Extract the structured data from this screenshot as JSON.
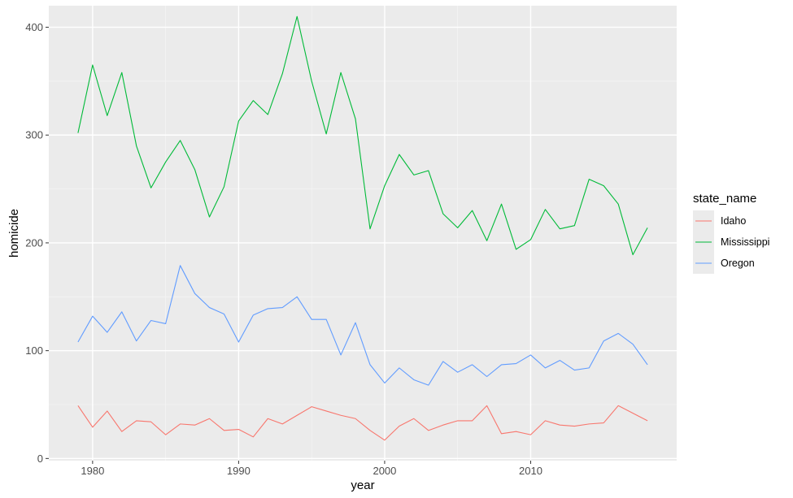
{
  "chart_data": {
    "type": "line",
    "xlabel": "year",
    "ylabel": "homicide",
    "xlim": [
      1977,
      2020
    ],
    "ylim": [
      -2,
      420
    ],
    "x_ticks": [
      1980,
      1990,
      2000,
      2010
    ],
    "x_tick_labels": [
      "1980",
      "1990",
      "2000",
      "2010"
    ],
    "y_ticks": [
      0,
      100,
      200,
      300,
      400
    ],
    "y_tick_labels": [
      "0",
      "100",
      "200",
      "300",
      "400"
    ],
    "grid": true,
    "legend": {
      "title": "state_name",
      "placement": "right"
    },
    "x": [
      1979,
      1980,
      1981,
      1982,
      1983,
      1984,
      1985,
      1986,
      1987,
      1988,
      1989,
      1990,
      1991,
      1992,
      1993,
      1994,
      1995,
      1996,
      1997,
      1998,
      1999,
      2000,
      2001,
      2002,
      2003,
      2004,
      2005,
      2006,
      2007,
      2008,
      2009,
      2010,
      2011,
      2012,
      2013,
      2014,
      2015,
      2016,
      2017,
      2018
    ],
    "series": [
      {
        "name": "Idaho",
        "color": "#F8766D",
        "values": [
          49,
          29,
          44,
          25,
          35,
          34,
          22,
          32,
          31,
          37,
          26,
          27,
          20,
          37,
          32,
          40,
          48,
          44,
          40,
          37,
          26,
          17,
          30,
          37,
          26,
          31,
          35,
          35,
          49,
          23,
          25,
          22,
          35,
          31,
          30,
          32,
          33,
          49,
          42,
          35
        ]
      },
      {
        "name": "Mississippi",
        "color": "#00BA38",
        "values": [
          302,
          365,
          318,
          358,
          290,
          251,
          275,
          295,
          268,
          224,
          252,
          313,
          332,
          319,
          357,
          410,
          350,
          301,
          358,
          315,
          213,
          253,
          282,
          263,
          267,
          227,
          214,
          230,
          202,
          236,
          194,
          203,
          231,
          213,
          216,
          259,
          253,
          236,
          189,
          214
        ]
      },
      {
        "name": "Oregon",
        "color": "#619CFF",
        "values": [
          108,
          132,
          117,
          136,
          109,
          128,
          125,
          179,
          153,
          140,
          134,
          108,
          133,
          139,
          140,
          150,
          129,
          129,
          96,
          126,
          87,
          70,
          84,
          73,
          68,
          90,
          80,
          87,
          76,
          87,
          88,
          96,
          84,
          91,
          82,
          84,
          109,
          116,
          106,
          87
        ]
      }
    ]
  }
}
